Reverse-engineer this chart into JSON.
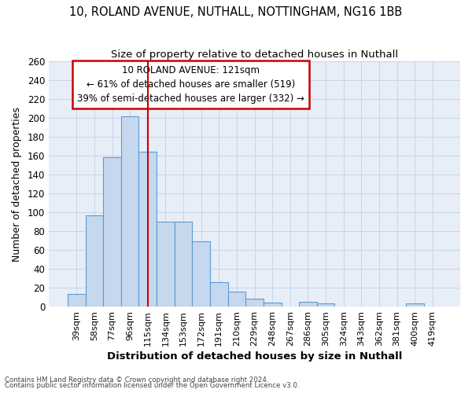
{
  "title1": "10, ROLAND AVENUE, NUTHALL, NOTTINGHAM, NG16 1BB",
  "title2": "Size of property relative to detached houses in Nuthall",
  "xlabel": "Distribution of detached houses by size in Nuthall",
  "ylabel": "Number of detached properties",
  "categories": [
    "39sqm",
    "58sqm",
    "77sqm",
    "96sqm",
    "115sqm",
    "134sqm",
    "153sqm",
    "172sqm",
    "191sqm",
    "210sqm",
    "229sqm",
    "248sqm",
    "267sqm",
    "286sqm",
    "305sqm",
    "324sqm",
    "343sqm",
    "362sqm",
    "381sqm",
    "400sqm",
    "419sqm"
  ],
  "values": [
    13,
    97,
    158,
    202,
    164,
    90,
    90,
    69,
    26,
    16,
    8,
    4,
    0,
    5,
    3,
    0,
    0,
    0,
    0,
    3,
    0
  ],
  "bar_color": "#c5d8ed",
  "bar_edge_color": "#5b9bd5",
  "vline_x": 4.0,
  "vline_color": "#cc0000",
  "annotation_line1": "10 ROLAND AVENUE: 121sqm",
  "annotation_line2": "← 61% of detached houses are smaller (519)",
  "annotation_line3": "39% of semi-detached houses are larger (332) →",
  "annotation_box_color": "#ffffff",
  "annotation_box_edge": "#cc0000",
  "ylim": [
    0,
    260
  ],
  "yticks": [
    0,
    20,
    40,
    60,
    80,
    100,
    120,
    140,
    160,
    180,
    200,
    220,
    240,
    260
  ],
  "grid_color": "#c8d4e8",
  "bg_color": "#e8eef8",
  "footer1": "Contains HM Land Registry data © Crown copyright and database right 2024.",
  "footer2": "Contains public sector information licensed under the Open Government Licence v3.0."
}
